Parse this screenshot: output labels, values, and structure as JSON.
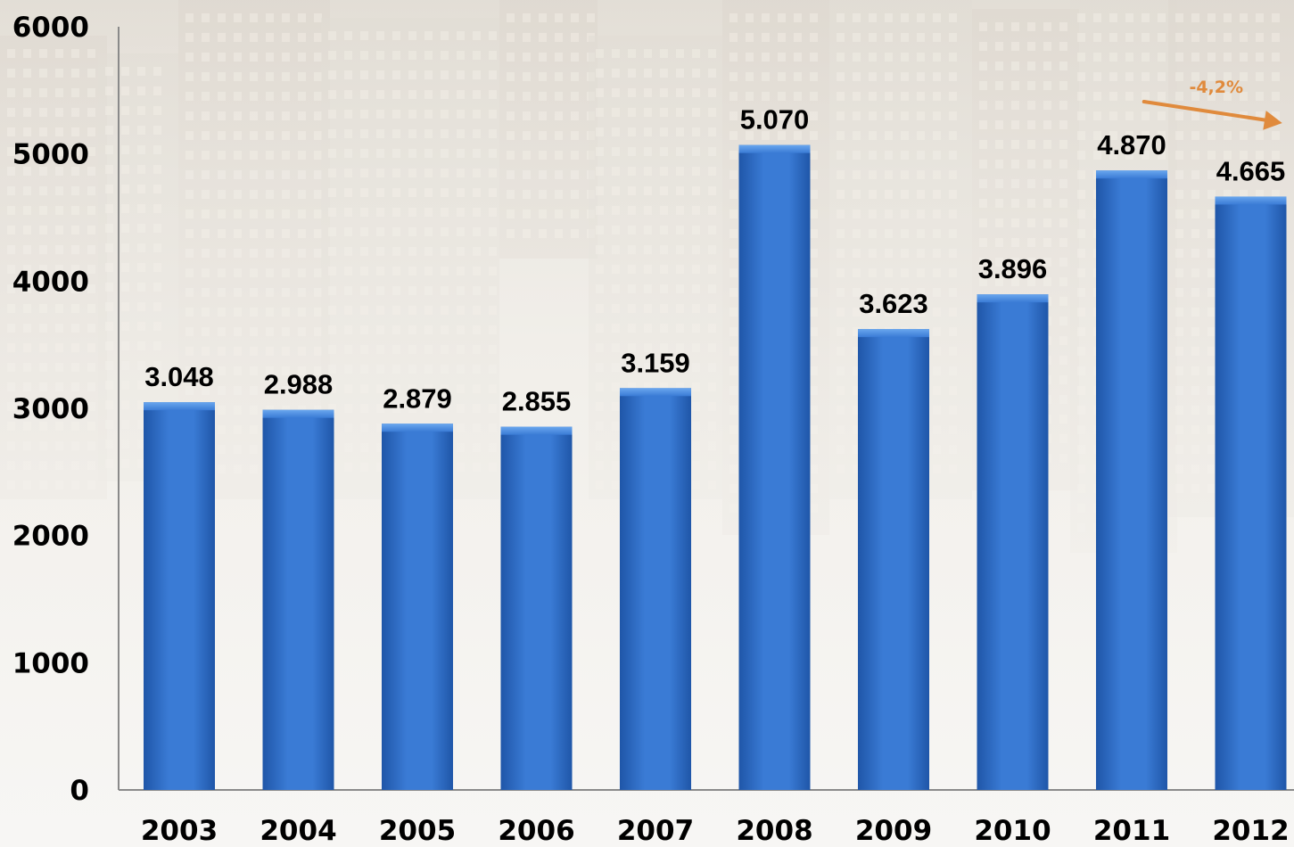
{
  "colors": {
    "bar": "#3a7bd5",
    "bar_dark": "#1f56a8",
    "bar_top": "#6aa7ee",
    "axis": "#8a8a8a",
    "annotation": "#e08a3c",
    "text": "#000000"
  },
  "chart_data": {
    "type": "bar",
    "categories": [
      "2003",
      "2004",
      "2005",
      "2006",
      "2007",
      "2008",
      "2009",
      "2010",
      "2011",
      "2012"
    ],
    "values": [
      3048,
      2988,
      2879,
      2855,
      3159,
      5070,
      3623,
      3896,
      4870,
      4665
    ],
    "data_labels": [
      "3.048",
      "2.988",
      "2.879",
      "2.855",
      "3.159",
      "5.070",
      "3.623",
      "3.896",
      "4.870",
      "4.665"
    ],
    "yticks": [
      "0",
      "1000",
      "2000",
      "3000",
      "4000",
      "5000",
      "6000"
    ],
    "ylim": [
      0,
      6000
    ],
    "grid": false,
    "legend": "none",
    "annotation": {
      "text": "-4,2%",
      "icon": "arrow-down-right-icon",
      "from_category": "2011",
      "to_category": "2012"
    }
  }
}
